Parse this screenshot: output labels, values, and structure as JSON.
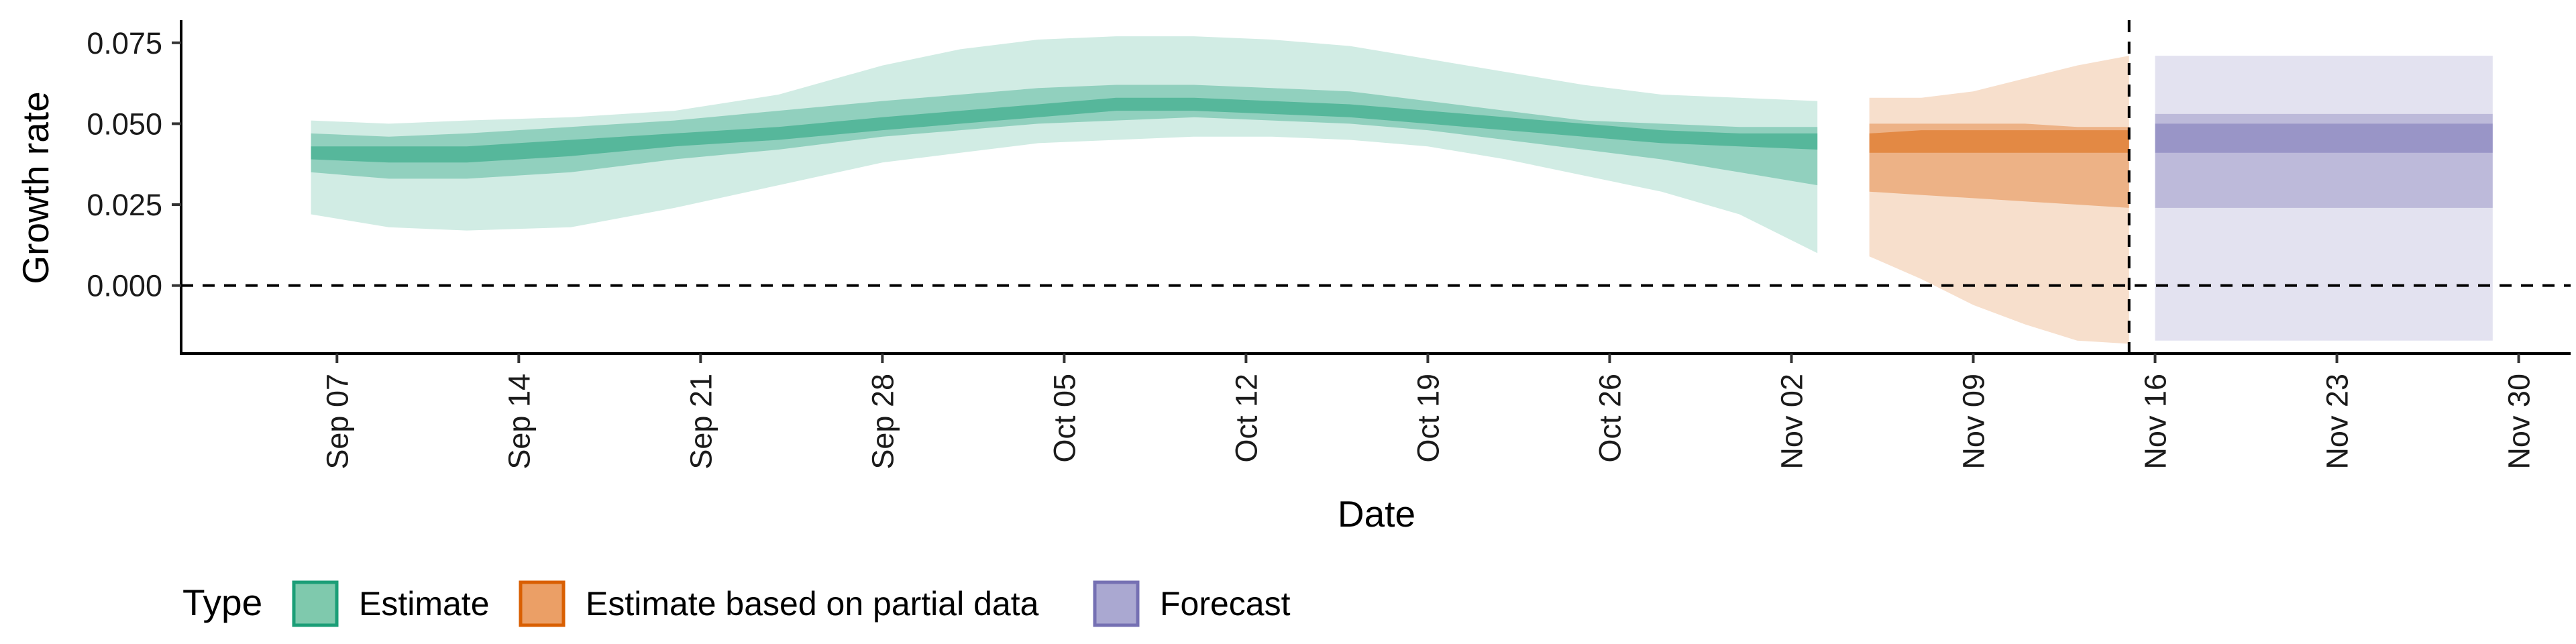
{
  "chart_data": {
    "type": "area",
    "xlabel": "Date",
    "ylabel": "Growth rate",
    "x_range": [
      "2020-09-01",
      "2020-12-02"
    ],
    "ylim": [
      -0.021,
      0.082
    ],
    "y_ticks": [
      0.0,
      0.025,
      0.05,
      0.075
    ],
    "y_tick_labels": [
      "0.000",
      "0.025",
      "0.050",
      "0.075"
    ],
    "x_ticks": [
      "2020-09-07",
      "2020-09-14",
      "2020-09-21",
      "2020-09-28",
      "2020-10-05",
      "2020-10-12",
      "2020-10-19",
      "2020-10-26",
      "2020-11-02",
      "2020-11-09",
      "2020-11-16",
      "2020-11-23",
      "2020-11-30"
    ],
    "x_tick_labels": [
      "Sep 07",
      "Sep 14",
      "Sep 21",
      "Sep 28",
      "Oct 05",
      "Oct 12",
      "Oct 19",
      "Oct 26",
      "Nov 02",
      "Nov 09",
      "Nov 16",
      "Nov 23",
      "Nov 30"
    ],
    "reference_line_y": 0,
    "vertical_line_x": "2020-11-15",
    "grid": false,
    "legend": {
      "title": "Type",
      "position": "bottom",
      "entries": [
        {
          "label": "Estimate",
          "fill": "#7fc9ad",
          "stroke": "#1b9e77"
        },
        {
          "label": "Estimate based on partial data",
          "fill": "#eb9f66",
          "stroke": "#d95f02"
        },
        {
          "label": "Forecast",
          "fill": "#aaa8d1",
          "stroke": "#7570b3"
        }
      ]
    },
    "series": [
      {
        "name": "Estimate",
        "color": "#1b9e77",
        "ribbon_opacities": [
          0.2,
          0.35,
          0.5
        ],
        "dates": [
          "2020-09-06",
          "2020-09-09",
          "2020-09-12",
          "2020-09-16",
          "2020-09-20",
          "2020-09-24",
          "2020-09-28",
          "2020-10-01",
          "2020-10-04",
          "2020-10-07",
          "2020-10-10",
          "2020-10-13",
          "2020-10-16",
          "2020-10-19",
          "2020-10-22",
          "2020-10-25",
          "2020-10-28",
          "2020-10-31",
          "2020-11-03"
        ],
        "lower90": [
          0.022,
          0.018,
          0.017,
          0.018,
          0.024,
          0.031,
          0.038,
          0.041,
          0.044,
          0.045,
          0.046,
          0.046,
          0.045,
          0.043,
          0.039,
          0.034,
          0.029,
          0.022,
          0.01
        ],
        "upper90": [
          0.051,
          0.05,
          0.051,
          0.052,
          0.054,
          0.059,
          0.068,
          0.073,
          0.076,
          0.077,
          0.077,
          0.076,
          0.074,
          0.07,
          0.066,
          0.062,
          0.059,
          0.058,
          0.057
        ],
        "lower50": [
          0.035,
          0.033,
          0.033,
          0.035,
          0.039,
          0.042,
          0.046,
          0.048,
          0.05,
          0.051,
          0.052,
          0.051,
          0.05,
          0.048,
          0.045,
          0.042,
          0.039,
          0.035,
          0.031
        ],
        "upper50": [
          0.047,
          0.046,
          0.047,
          0.049,
          0.051,
          0.054,
          0.057,
          0.059,
          0.061,
          0.062,
          0.062,
          0.061,
          0.06,
          0.057,
          0.054,
          0.051,
          0.05,
          0.049,
          0.049
        ],
        "lower20": [
          0.039,
          0.038,
          0.038,
          0.04,
          0.043,
          0.045,
          0.048,
          0.05,
          0.052,
          0.054,
          0.054,
          0.053,
          0.052,
          0.05,
          0.048,
          0.046,
          0.044,
          0.043,
          0.042
        ],
        "upper20": [
          0.043,
          0.043,
          0.043,
          0.045,
          0.047,
          0.049,
          0.052,
          0.054,
          0.056,
          0.058,
          0.058,
          0.057,
          0.056,
          0.054,
          0.052,
          0.05,
          0.048,
          0.047,
          0.047
        ]
      },
      {
        "name": "Estimate based on partial data",
        "color": "#d95f02",
        "ribbon_opacities": [
          0.2,
          0.35,
          0.5
        ],
        "dates": [
          "2020-11-05",
          "2020-11-07",
          "2020-11-09",
          "2020-11-11",
          "2020-11-13",
          "2020-11-15"
        ],
        "lower90": [
          0.009,
          0.002,
          -0.006,
          -0.012,
          -0.017,
          -0.018
        ],
        "upper90": [
          0.058,
          0.058,
          0.06,
          0.064,
          0.068,
          0.071
        ],
        "lower50": [
          0.029,
          0.028,
          0.027,
          0.026,
          0.025,
          0.024
        ],
        "upper50": [
          0.05,
          0.05,
          0.05,
          0.05,
          0.049,
          0.049
        ],
        "lower20": [
          0.041,
          0.041,
          0.041,
          0.041,
          0.041,
          0.041
        ],
        "upper20": [
          0.047,
          0.048,
          0.048,
          0.048,
          0.048,
          0.048
        ]
      },
      {
        "name": "Forecast",
        "color": "#7570b3",
        "ribbon_opacities": [
          0.2,
          0.35,
          0.5
        ],
        "dates": [
          "2020-11-16",
          "2020-11-29"
        ],
        "lower90": [
          -0.017,
          -0.017
        ],
        "upper90": [
          0.071,
          0.071
        ],
        "lower50": [
          0.024,
          0.024
        ],
        "upper50": [
          0.053,
          0.053
        ],
        "lower20": [
          0.041,
          0.041
        ],
        "upper20": [
          0.05,
          0.05
        ]
      }
    ]
  }
}
